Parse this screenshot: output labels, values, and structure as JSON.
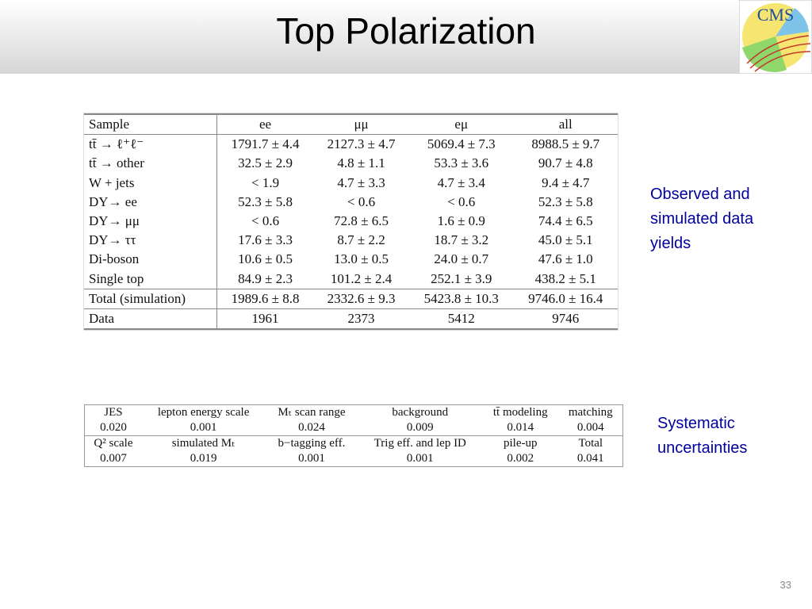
{
  "header": {
    "title": "Top Polarization",
    "logo": "CMS"
  },
  "yields_table": {
    "columns": [
      "Sample",
      "ee",
      "μμ",
      "eμ",
      "all"
    ],
    "rows": [
      [
        "tt̄ → ℓ⁺ℓ⁻",
        "1791.7 ± 4.4",
        "2127.3 ± 4.7",
        "5069.4 ± 7.3",
        "8988.5 ± 9.7"
      ],
      [
        "tt̄ → other",
        "32.5 ± 2.9",
        "4.8 ± 1.1",
        "53.3 ± 3.6",
        "90.7 ± 4.8"
      ],
      [
        "W + jets",
        "< 1.9",
        "4.7 ± 3.3",
        "4.7 ± 3.4",
        "9.4 ± 4.7"
      ],
      [
        "DY→ ee",
        "52.3 ± 5.8",
        "< 0.6",
        "< 0.6",
        "52.3 ± 5.8"
      ],
      [
        "DY→ μμ",
        "< 0.6",
        "72.8 ± 6.5",
        "1.6 ± 0.9",
        "74.4 ± 6.5"
      ],
      [
        "DY→ ττ",
        "17.6 ± 3.3",
        "8.7 ± 2.2",
        "18.7 ± 3.2",
        "45.0 ± 5.1"
      ],
      [
        "Di-boson",
        "10.6 ± 0.5",
        "13.0 ± 0.5",
        "24.0 ± 0.7",
        "47.6 ± 1.0"
      ],
      [
        "Single top",
        "84.9 ± 2.3",
        "101.2 ± 2.4",
        "252.1 ± 3.9",
        "438.2 ± 5.1"
      ],
      [
        "Total (simulation)",
        "1989.6 ± 8.8",
        "2332.6 ± 9.3",
        "5423.8 ± 10.3",
        "9746.0 ± 16.4"
      ],
      [
        "Data",
        "1961",
        "2373",
        "5412",
        "9746"
      ]
    ]
  },
  "yields_note": "Observed and simulated data yields",
  "systematics_table": {
    "rows": [
      [
        "JES",
        "lepton energy scale",
        "Mₜ scan range",
        "background",
        "tt̄ modeling",
        "matching"
      ],
      [
        "0.020",
        "0.001",
        "0.024",
        "0.009",
        "0.014",
        "0.004"
      ],
      [
        "Q² scale",
        "simulated Mₜ",
        "b−tagging eff.",
        "Trig eff. and lep ID",
        "pile-up",
        "Total"
      ],
      [
        "0.007",
        "0.019",
        "0.001",
        "0.001",
        "0.002",
        "0.041"
      ]
    ]
  },
  "systematics_note": "Systematic uncertainties",
  "page_number": "33"
}
